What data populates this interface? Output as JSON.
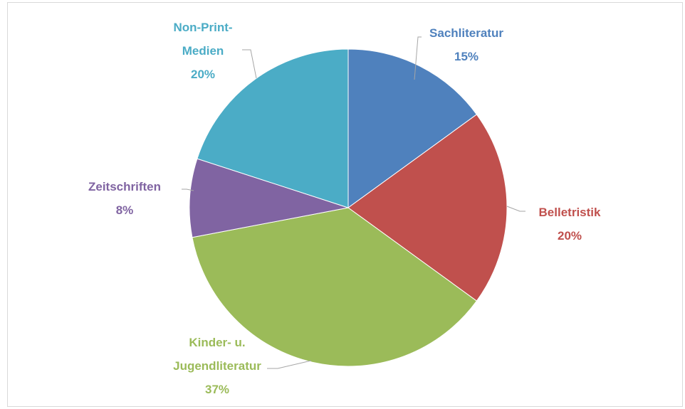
{
  "chart_data": {
    "type": "pie",
    "categories": [
      "Sachliteratur",
      "Belletristik",
      "Kinder- u. Jugendliteratur",
      "Zeitschriften",
      "Non-Print-Medien"
    ],
    "values": [
      15,
      20,
      37,
      8,
      20
    ],
    "value_labels": [
      "15%",
      "20%",
      "37%",
      "8%",
      "20%"
    ],
    "colors": [
      "#4f81bd",
      "#c0504d",
      "#9bbb59",
      "#8064a2",
      "#4bacc6"
    ]
  }
}
